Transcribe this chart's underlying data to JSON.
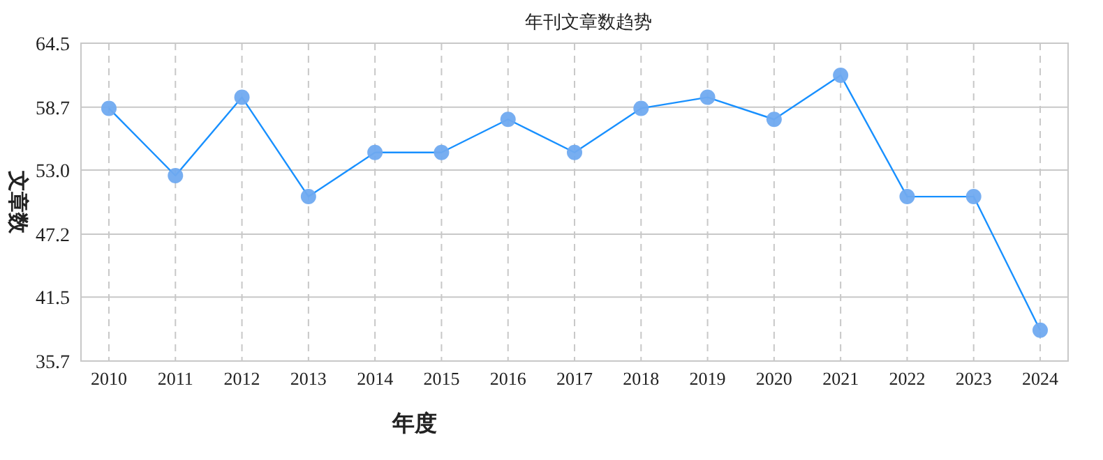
{
  "chart_data": {
    "type": "line",
    "title": "年刊文章数趋势",
    "xlabel": "年度",
    "ylabel": "文章数",
    "categories": [
      "2010",
      "2011",
      "2012",
      "2013",
      "2014",
      "2015",
      "2016",
      "2017",
      "2018",
      "2019",
      "2020",
      "2021",
      "2022",
      "2023",
      "2024"
    ],
    "series": [
      {
        "color": "#1890ff",
        "values": [
          58.6,
          52.5,
          59.6,
          50.6,
          54.6,
          54.6,
          57.6,
          54.6,
          58.6,
          59.6,
          57.6,
          61.6,
          50.6,
          50.6,
          38.5
        ]
      }
    ],
    "ylim": [
      35.7,
      64.5
    ],
    "yticks": [
      35.7,
      41.5,
      47.2,
      {
        "value": 53,
        "label": "53.0"
      },
      58.7,
      64.5
    ],
    "grid": true,
    "marker": "circle",
    "line_style": "solid"
  }
}
